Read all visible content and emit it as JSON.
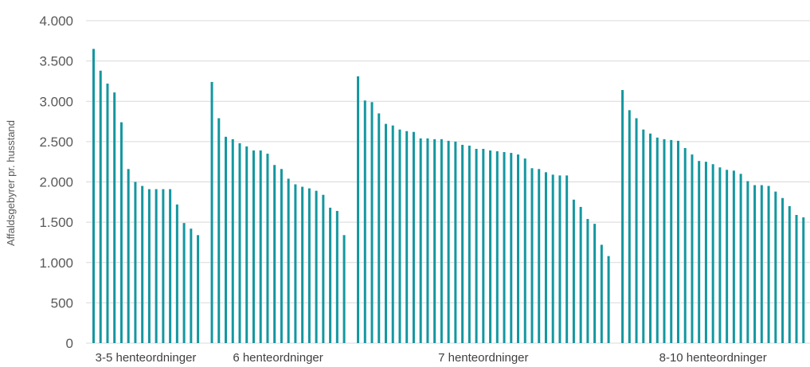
{
  "chart_data": {
    "type": "bar",
    "ylabel": "Affaldsgebyrer pr. husstand",
    "ylim": [
      0,
      4000
    ],
    "yticks": [
      0,
      500,
      1000,
      1500,
      2000,
      2500,
      3000,
      3500,
      4000
    ],
    "ytick_labels": [
      "0",
      "500",
      "1.000",
      "1.500",
      "2.000",
      "2.500",
      "3.000",
      "3.500",
      "4.000"
    ],
    "grid": true,
    "bar_color": "#1497a0",
    "groups": [
      {
        "name": "3-5 henteordninger",
        "values": [
          3650,
          3380,
          3220,
          3110,
          2740,
          2160,
          2000,
          1950,
          1910,
          1910,
          1910,
          1910,
          1720,
          1490,
          1420,
          1340
        ]
      },
      {
        "name": "6 henteordninger",
        "values": [
          3240,
          2790,
          2560,
          2530,
          2480,
          2440,
          2390,
          2390,
          2350,
          2210,
          2160,
          2040,
          1970,
          1940,
          1920,
          1890,
          1840,
          1680,
          1640,
          1340
        ]
      },
      {
        "name": "7 henteordninger",
        "values": [
          3310,
          3010,
          2990,
          2850,
          2720,
          2700,
          2650,
          2630,
          2620,
          2540,
          2540,
          2530,
          2530,
          2510,
          2500,
          2460,
          2450,
          2410,
          2410,
          2390,
          2380,
          2370,
          2360,
          2340,
          2290,
          2170,
          2160,
          2120,
          2090,
          2080,
          2080,
          1780,
          1690,
          1540,
          1480,
          1220,
          1080
        ]
      },
      {
        "name": "8-10 henteordninger",
        "values": [
          3140,
          2890,
          2790,
          2650,
          2600,
          2550,
          2530,
          2520,
          2510,
          2420,
          2340,
          2260,
          2250,
          2220,
          2180,
          2150,
          2140,
          2100,
          2010,
          1960,
          1960,
          1950,
          1880,
          1800,
          1700,
          1590,
          1560
        ]
      }
    ]
  }
}
